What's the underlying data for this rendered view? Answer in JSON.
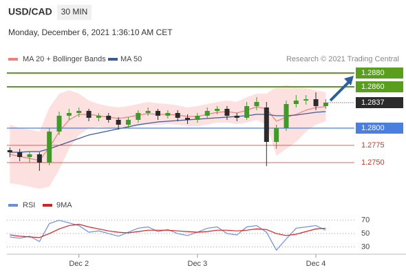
{
  "chart_data": {
    "type": "candlestick",
    "title": "USD/CAD",
    "timeframe": "30 MIN",
    "subtitle": "Monday, December 6, 2021 1:36:10 AM CET",
    "source": "Research © 2021 Trading Central",
    "legend": {
      "bollinger": "MA 20 + Bollinger Bands",
      "ma50": "MA 50",
      "rsi": "RSI",
      "rsi_ma": "9MA"
    },
    "colors": {
      "up": "#3f9a2a",
      "down": "#2b2b2b",
      "band": "#fcd5d5",
      "ma20": "#f08080",
      "ma50": "#3d5a98",
      "rsi": "#6b8fd6",
      "rsi_ma": "#d92020"
    },
    "xlim": [
      -14.6,
      55.8
    ],
    "xticks": [
      {
        "value": 0,
        "label": "Dec 2"
      },
      {
        "value": 24,
        "label": "Dec 3"
      },
      {
        "value": 48,
        "label": "Dec 4"
      }
    ],
    "ylim": [
      1.2708,
      1.2898
    ],
    "x": [
      -14,
      -12,
      -10,
      -8,
      -6,
      -4,
      -2,
      0,
      2,
      4,
      6,
      8,
      10,
      12,
      14,
      16,
      18,
      20,
      22,
      24,
      26,
      28,
      30,
      32,
      34,
      36,
      38,
      40,
      42,
      44,
      46,
      48,
      50
    ],
    "open": [
      1.2768,
      1.2765,
      1.2758,
      1.2762,
      1.275,
      1.2795,
      1.2818,
      1.2822,
      1.2825,
      1.2815,
      1.2818,
      1.2812,
      1.2805,
      1.2812,
      1.2822,
      1.2825,
      1.2818,
      1.2822,
      1.2815,
      1.2812,
      1.2818,
      1.2825,
      1.2828,
      1.2818,
      1.2815,
      1.2832,
      1.283,
      1.278,
      1.28,
      1.2835,
      1.284,
      1.2842,
      1.2832
    ],
    "high": [
      1.2772,
      1.277,
      1.2766,
      1.2765,
      1.28,
      1.2824,
      1.2828,
      1.283,
      1.2828,
      1.2822,
      1.2822,
      1.2816,
      1.2816,
      1.2826,
      1.283,
      1.2828,
      1.2826,
      1.2826,
      1.282,
      1.2822,
      1.283,
      1.2832,
      1.2832,
      1.2822,
      1.2838,
      1.2845,
      1.2838,
      1.2805,
      1.284,
      1.2848,
      1.2848,
      1.2852,
      1.2842
    ],
    "low": [
      1.2758,
      1.2752,
      1.275,
      1.2738,
      1.2746,
      1.279,
      1.2812,
      1.2816,
      1.281,
      1.281,
      1.2808,
      1.2798,
      1.28,
      1.2808,
      1.2818,
      1.2812,
      1.2814,
      1.281,
      1.2806,
      1.2808,
      1.2814,
      1.282,
      1.2812,
      1.281,
      1.2812,
      1.2826,
      1.2745,
      1.277,
      1.2796,
      1.283,
      1.2834,
      1.2826,
      1.2828
    ],
    "close": [
      1.2765,
      1.2758,
      1.2762,
      1.275,
      1.2795,
      1.2818,
      1.2822,
      1.2825,
      1.2815,
      1.2818,
      1.2812,
      1.2805,
      1.2812,
      1.2822,
      1.2825,
      1.2818,
      1.2822,
      1.2815,
      1.2812,
      1.2818,
      1.2825,
      1.2828,
      1.2818,
      1.2815,
      1.2832,
      1.2838,
      1.278,
      1.28,
      1.2835,
      1.284,
      1.2842,
      1.2832,
      1.2837
    ],
    "bb_upper": [
      1.2805,
      1.28,
      1.2798,
      1.2795,
      1.283,
      1.285,
      1.2855,
      1.285,
      1.284,
      1.2835,
      1.2832,
      1.283,
      1.2832,
      1.2835,
      1.2838,
      1.2836,
      1.2835,
      1.2833,
      1.283,
      1.2832,
      1.2835,
      1.2838,
      1.284,
      1.2838,
      1.2845,
      1.285,
      1.285,
      1.286,
      1.2862,
      1.286,
      1.2858,
      1.2855,
      1.2852
    ],
    "bb_lower": [
      1.272,
      1.2718,
      1.2715,
      1.2712,
      1.2715,
      1.274,
      1.277,
      1.279,
      1.28,
      1.2802,
      1.28,
      1.2798,
      1.28,
      1.2803,
      1.2805,
      1.2805,
      1.2806,
      1.2805,
      1.2803,
      1.2803,
      1.2805,
      1.2808,
      1.2808,
      1.2806,
      1.2808,
      1.2812,
      1.2805,
      1.276,
      1.277,
      1.278,
      1.2795,
      1.2805,
      1.281
    ],
    "ma20": [
      1.2762,
      1.2759,
      1.2756,
      1.2753,
      1.2772,
      1.2795,
      1.2812,
      1.282,
      1.282,
      1.2818,
      1.2816,
      1.2814,
      1.2816,
      1.2819,
      1.2821,
      1.282,
      1.282,
      1.2819,
      1.2817,
      1.2817,
      1.282,
      1.2823,
      1.2824,
      1.2822,
      1.2826,
      1.2831,
      1.2828,
      1.281,
      1.2816,
      1.282,
      1.2826,
      1.283,
      1.2831
    ],
    "ma50": [
      1.2765,
      1.2765,
      1.2766,
      1.2766,
      1.277,
      1.2775,
      1.278,
      1.2785,
      1.279,
      1.2793,
      1.2796,
      1.2799,
      1.2802,
      1.2805,
      1.2807,
      1.2809,
      1.281,
      1.2811,
      1.2812,
      1.2813,
      1.2814,
      1.2815,
      1.2816,
      1.2817,
      1.2818,
      1.282,
      1.282,
      1.2818,
      1.2818,
      1.2819,
      1.2821,
      1.2823,
      1.2824
    ],
    "levels": [
      {
        "value": 1.288,
        "label": "1.2880",
        "color": "#5a9e1e",
        "style": "box"
      },
      {
        "value": 1.286,
        "label": "1.2860",
        "color": "#5a9e1e",
        "style": "box"
      },
      {
        "value": 1.2837,
        "label": "1.2837",
        "color": "#2b2b2b",
        "style": "current"
      },
      {
        "value": 1.28,
        "label": "1.2800",
        "color": "#4a7fe0",
        "style": "box"
      },
      {
        "value": 1.2775,
        "label": "1.2775",
        "color": "#c0392b",
        "style": "text"
      },
      {
        "value": 1.275,
        "label": "1.2750",
        "color": "#c0392b",
        "style": "text"
      }
    ],
    "rsi": [
      45,
      43,
      46,
      38,
      65,
      70,
      66,
      62,
      52,
      54,
      50,
      46,
      52,
      58,
      60,
      53,
      56,
      50,
      47,
      52,
      58,
      60,
      50,
      48,
      60,
      62,
      52,
      25,
      42,
      58,
      60,
      62,
      55
    ],
    "rsi_ma9": [
      48,
      46,
      45,
      44,
      50,
      57,
      62,
      64,
      60,
      57,
      54,
      52,
      51,
      53,
      55,
      55,
      55,
      54,
      53,
      52,
      53,
      55,
      55,
      54,
      55,
      57,
      56,
      50,
      47,
      49,
      53,
      57,
      58
    ],
    "rsi_ylim": [
      20,
      78
    ],
    "rsi_yticks": [
      30,
      50,
      70
    ]
  }
}
